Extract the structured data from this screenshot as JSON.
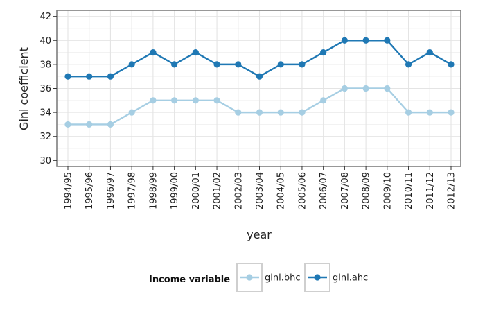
{
  "chart_data": {
    "type": "line",
    "title": "",
    "xlabel": "year",
    "ylabel": "Gini coefficient",
    "categories": [
      "1994/95",
      "1995/96",
      "1996/97",
      "1997/98",
      "1998/99",
      "1999/00",
      "2000/01",
      "2001/02",
      "2002/03",
      "2003/04",
      "2004/05",
      "2005/06",
      "2006/07",
      "2007/08",
      "2008/09",
      "2009/10",
      "2010/11",
      "2011/12",
      "2012/13"
    ],
    "ylim": [
      29.5,
      42.5
    ],
    "yticks": [
      30,
      32,
      34,
      36,
      38,
      40,
      42
    ],
    "grid": true,
    "series": [
      {
        "name": "gini.bhc",
        "color": "#a6cee3",
        "values": [
          33,
          33,
          33,
          34,
          35,
          35,
          35,
          35,
          34,
          34,
          34,
          34,
          35,
          36,
          36,
          36,
          34,
          34,
          34
        ]
      },
      {
        "name": "gini.ahc",
        "color": "#1f78b4",
        "values": [
          37,
          37,
          37,
          38,
          39,
          38,
          39,
          38,
          38,
          37,
          38,
          38,
          39,
          40,
          40,
          40,
          38,
          39,
          38
        ]
      }
    ],
    "legend": {
      "title": "Income variable",
      "position": "bottom"
    }
  }
}
